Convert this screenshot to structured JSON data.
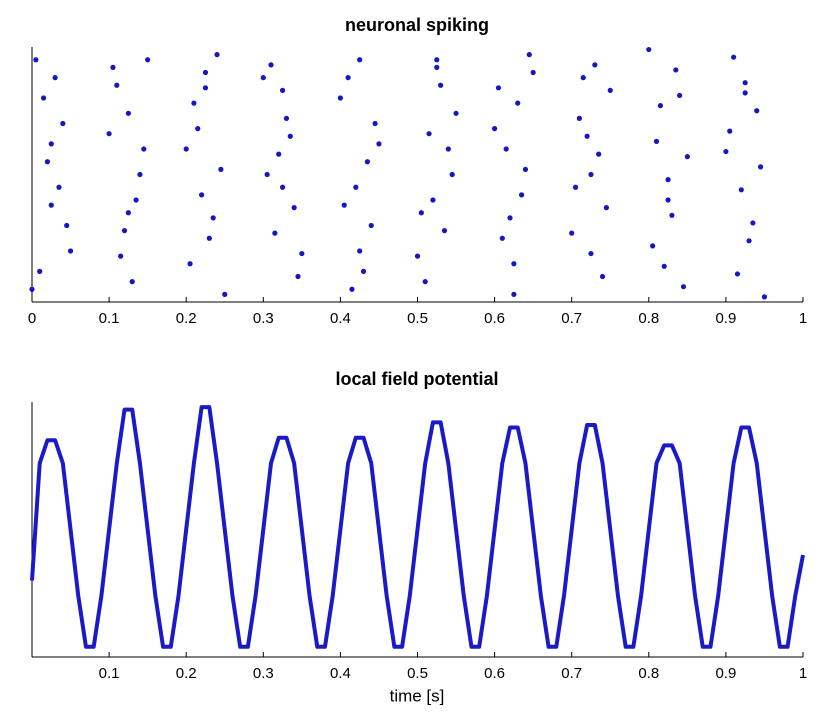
{
  "chart_data": [
    {
      "type": "scatter",
      "title": "neuronal spiking",
      "color": "#1616c4",
      "x": [
        0.005,
        0.015,
        0.025,
        0.035,
        0.045,
        0.01,
        0.03,
        0.04,
        0.02,
        0.05,
        0,
        0.025,
        0.105,
        0.115,
        0.125,
        0.135,
        0.145,
        0.11,
        0.13,
        0.14,
        0.12,
        0.15,
        0.1,
        0.125,
        0.205,
        0.215,
        0.225,
        0.235,
        0.245,
        0.21,
        0.23,
        0.24,
        0.22,
        0.25,
        0.2,
        0.225,
        0.305,
        0.315,
        0.325,
        0.335,
        0.345,
        0.31,
        0.33,
        0.34,
        0.32,
        0.35,
        0.3,
        0.325,
        0.405,
        0.415,
        0.425,
        0.435,
        0.445,
        0.41,
        0.43,
        0.44,
        0.42,
        0.45,
        0.4,
        0.425,
        0.505,
        0.515,
        0.525,
        0.535,
        0.545,
        0.51,
        0.53,
        0.54,
        0.52,
        0.55,
        0.5,
        0.525,
        0.605,
        0.615,
        0.625,
        0.635,
        0.645,
        0.61,
        0.63,
        0.64,
        0.62,
        0.65,
        0.6,
        0.625,
        0.705,
        0.715,
        0.725,
        0.735,
        0.745,
        0.71,
        0.73,
        0.74,
        0.72,
        0.75,
        0.7,
        0.725,
        0.805,
        0.815,
        0.825,
        0.835,
        0.845,
        0.81,
        0.83,
        0.84,
        0.82,
        0.85,
        0.8,
        0.825,
        0.905,
        0.915,
        0.925,
        0.935,
        0.945,
        0.91,
        0.93,
        0.94,
        0.92,
        0.95,
        0.9,
        0.925
      ],
      "values": [
        95,
        80,
        62,
        45,
        30,
        12,
        88,
        70,
        55,
        20,
        5,
        38,
        92,
        18,
        74,
        40,
        60,
        85,
        8,
        50,
        28,
        95,
        66,
        35,
        15,
        68,
        90,
        33,
        52,
        78,
        25,
        97,
        42,
        3,
        60,
        84,
        50,
        27,
        83,
        65,
        10,
        93,
        72,
        37,
        58,
        19,
        88,
        45,
        38,
        5,
        20,
        55,
        70,
        88,
        12,
        30,
        45,
        62,
        80,
        95,
        35,
        66,
        95,
        28,
        50,
        8,
        85,
        60,
        40,
        74,
        18,
        92,
        84,
        60,
        3,
        42,
        97,
        25,
        78,
        52,
        33,
        90,
        68,
        15,
        45,
        88,
        19,
        58,
        37,
        72,
        93,
        10,
        65,
        83,
        27,
        50,
        22,
        77,
        48,
        91,
        6,
        63,
        34,
        81,
        14,
        57,
        99,
        40,
        67,
        11,
        86,
        31,
        53,
        96,
        24,
        75,
        44,
        2,
        59,
        82
      ],
      "xlim": [
        0,
        1
      ],
      "ylim": [
        0,
        100
      ],
      "xticks": [
        0,
        0.1,
        0.2,
        0.3,
        0.4,
        0.5,
        0.6,
        0.7,
        0.8,
        0.9,
        1
      ]
    },
    {
      "type": "line",
      "title": "local field potential",
      "xlabel": "time [s]",
      "color": "#1a1ac8",
      "x": [
        0,
        0.01,
        0.02,
        0.03,
        0.04,
        0.05,
        0.06,
        0.07,
        0.08,
        0.09,
        0.1,
        0.11,
        0.12,
        0.13,
        0.14,
        0.15,
        0.16,
        0.17,
        0.18,
        0.19,
        0.2,
        0.21,
        0.22,
        0.23,
        0.24,
        0.25,
        0.26,
        0.27,
        0.28,
        0.29,
        0.3,
        0.31,
        0.32,
        0.33,
        0.34,
        0.35,
        0.36,
        0.37,
        0.38,
        0.39,
        0.4,
        0.41,
        0.42,
        0.43,
        0.44,
        0.45,
        0.46,
        0.47,
        0.48,
        0.49,
        0.5,
        0.51,
        0.52,
        0.53,
        0.54,
        0.55,
        0.56,
        0.57,
        0.58,
        0.59,
        0.6,
        0.61,
        0.62,
        0.63,
        0.64,
        0.65,
        0.66,
        0.67,
        0.68,
        0.69,
        0.7,
        0.71,
        0.72,
        0.73,
        0.74,
        0.75,
        0.76,
        0.77,
        0.78,
        0.79,
        0.8,
        0.81,
        0.82,
        0.83,
        0.84,
        0.85,
        0.86,
        0.87,
        0.88,
        0.89,
        0.9,
        0.91,
        0.92,
        0.93,
        0.94,
        0.95,
        0.96,
        0.97,
        0.98,
        0.99,
        1
      ],
      "values": [
        0.3,
        0.76,
        0.85,
        0.85,
        0.76,
        0.5,
        0.24,
        0.04,
        0.04,
        0.24,
        0.5,
        0.76,
        0.97,
        0.97,
        0.76,
        0.5,
        0.24,
        0.04,
        0.04,
        0.24,
        0.5,
        0.76,
        0.98,
        0.98,
        0.76,
        0.5,
        0.24,
        0.04,
        0.04,
        0.24,
        0.5,
        0.76,
        0.86,
        0.86,
        0.76,
        0.5,
        0.24,
        0.04,
        0.04,
        0.24,
        0.5,
        0.76,
        0.86,
        0.86,
        0.76,
        0.5,
        0.24,
        0.04,
        0.04,
        0.24,
        0.5,
        0.76,
        0.92,
        0.92,
        0.76,
        0.5,
        0.24,
        0.04,
        0.04,
        0.24,
        0.5,
        0.76,
        0.9,
        0.9,
        0.76,
        0.5,
        0.24,
        0.04,
        0.04,
        0.24,
        0.5,
        0.76,
        0.91,
        0.91,
        0.76,
        0.5,
        0.24,
        0.04,
        0.04,
        0.24,
        0.5,
        0.76,
        0.83,
        0.83,
        0.76,
        0.5,
        0.24,
        0.04,
        0.04,
        0.24,
        0.5,
        0.76,
        0.9,
        0.9,
        0.76,
        0.5,
        0.24,
        0.04,
        0.04,
        0.24,
        0.4
      ],
      "xlim": [
        0,
        1
      ],
      "ylim": [
        0,
        1
      ],
      "xticks": [
        0.1,
        0.2,
        0.3,
        0.4,
        0.5,
        0.6,
        0.7,
        0.8,
        0.9,
        1
      ]
    }
  ]
}
